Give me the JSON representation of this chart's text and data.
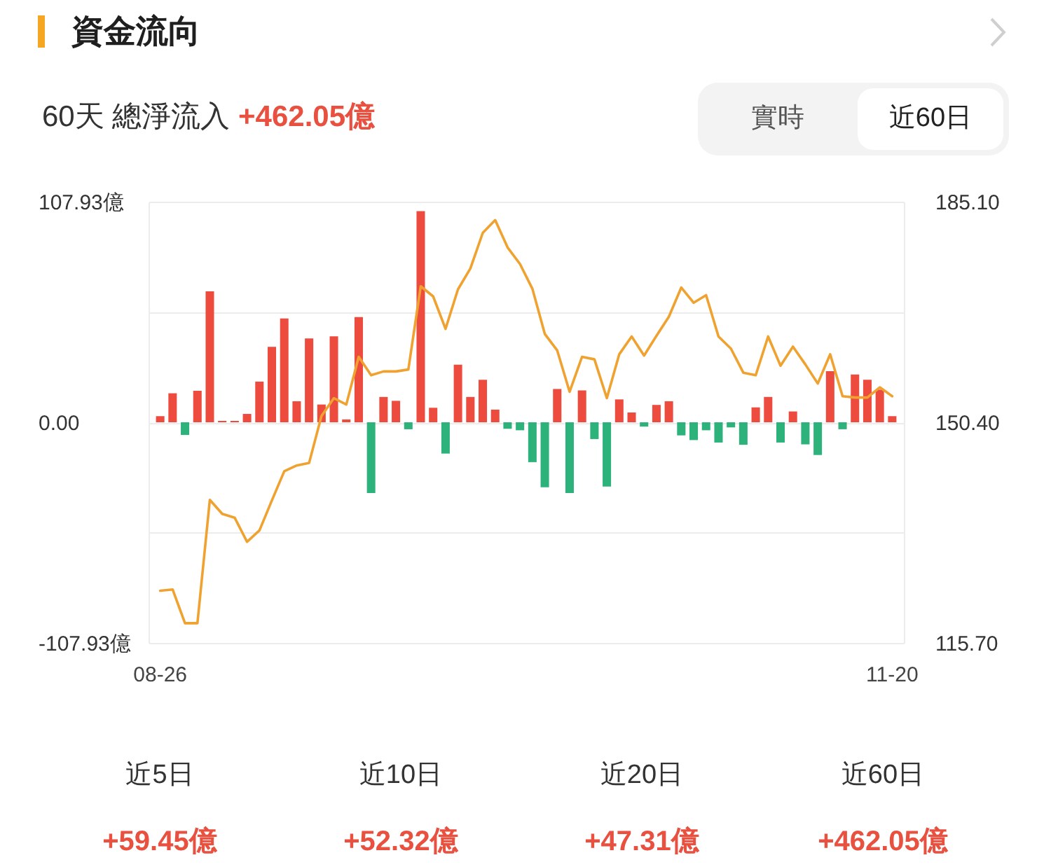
{
  "chart_data": {
    "type": "bar",
    "title": "資金流向",
    "subtitle": "60天 總淨流入 +462.05億",
    "categories": [
      "08-26",
      null,
      null,
      null,
      null,
      null,
      null,
      null,
      null,
      null,
      null,
      null,
      null,
      null,
      null,
      null,
      null,
      null,
      null,
      null,
      null,
      null,
      null,
      null,
      null,
      null,
      null,
      null,
      null,
      null,
      null,
      null,
      null,
      null,
      null,
      null,
      null,
      null,
      null,
      null,
      null,
      null,
      null,
      null,
      null,
      null,
      null,
      null,
      null,
      null,
      null,
      null,
      null,
      null,
      null,
      null,
      null,
      null,
      null,
      "11-20"
    ],
    "series": [
      {
        "values": [
          3.0,
          14.2,
          -6.2,
          15.4,
          64.1,
          0.7,
          0.7,
          4.1,
          19.9,
          36.9,
          50.8,
          10.3,
          41.0,
          8.7,
          42.1,
          1.4,
          51.5,
          -34.6,
          12.4,
          10.5,
          -3.4,
          103.3,
          7.1,
          -15.3,
          28.2,
          12.4,
          20.8,
          6.2,
          -3.2,
          -3.9,
          -19.5,
          -31.8,
          16.3,
          -34.6,
          15.6,
          -8.2,
          -31.4,
          11.2,
          4.8,
          -2.1,
          8.5,
          10.3,
          -6.4,
          -8.7,
          -3.9,
          -9.9,
          -2.5,
          -11.0,
          7.3,
          12.4,
          -9.9,
          5.3,
          -10.8,
          -16.0,
          25.0,
          -3.4,
          23.4,
          20.8,
          16.0,
          3.0
        ],
        "colors": [
          "#ee4b3f",
          "#ee4b3f",
          "#2eb27c",
          "#ee4b3f",
          "#ee4b3f",
          "#ee4b3f",
          "#ee4b3f",
          "#ee4b3f",
          "#ee4b3f",
          "#ee4b3f",
          "#ee4b3f",
          "#ee4b3f",
          "#ee4b3f",
          "#ee4b3f",
          "#ee4b3f",
          "#ee4b3f",
          "#ee4b3f",
          "#2eb27c",
          "#ee4b3f",
          "#ee4b3f",
          "#2eb27c",
          "#ee4b3f",
          "#ee4b3f",
          "#2eb27c",
          "#ee4b3f",
          "#ee4b3f",
          "#ee4b3f",
          "#ee4b3f",
          "#2eb27c",
          "#2eb27c",
          "#2eb27c",
          "#2eb27c",
          "#ee4b3f",
          "#2eb27c",
          "#ee4b3f",
          "#2eb27c",
          "#2eb27c",
          "#ee4b3f",
          "#ee4b3f",
          "#2eb27c",
          "#ee4b3f",
          "#ee4b3f",
          "#2eb27c",
          "#2eb27c",
          "#2eb27c",
          "#2eb27c",
          "#2eb27c",
          "#2eb27c",
          "#ee4b3f",
          "#ee4b3f",
          "#2eb27c",
          "#ee4b3f",
          "#2eb27c",
          "#2eb27c",
          "#ee4b3f",
          "#2eb27c",
          "#ee4b3f",
          "#ee4b3f",
          "#ee4b3f",
          "#ee4b3f"
        ]
      },
      {
        "type": "line",
        "axis": "y2",
        "color": "#efa22f",
        "values": [
          123.9,
          124.1,
          118.8,
          118.8,
          138.2,
          136.0,
          135.4,
          131.6,
          133.4,
          138.1,
          142.7,
          143.6,
          144.0,
          151.4,
          154.2,
          153.2,
          160.7,
          157.8,
          158.4,
          158.4,
          158.7,
          171.8,
          170.2,
          165.1,
          171.3,
          174.6,
          180.2,
          182.2,
          177.9,
          175.3,
          171.4,
          164.3,
          161.7,
          155.2,
          160.7,
          160.3,
          154.2,
          161.1,
          163.9,
          160.9,
          164.0,
          167.0,
          171.6,
          169.2,
          170.4,
          163.9,
          162.0,
          158.2,
          157.8,
          163.9,
          159.3,
          162.3,
          159.5,
          156.5,
          161.1,
          154.5,
          154.3,
          154.3,
          155.9,
          154.5
        ]
      }
    ],
    "ylim": [
      -107.93,
      107.93
    ],
    "yticks": [
      {
        "value": 107.93,
        "label": "107.93億"
      },
      {
        "value": 53.965,
        "label": null
      },
      {
        "value": 0,
        "label": "0.00"
      },
      {
        "value": -53.965,
        "label": null
      },
      {
        "value": -107.93,
        "label": "-107.93億"
      }
    ],
    "y2lim": [
      115.7,
      185.1
    ],
    "y2ticks": [
      {
        "value": 185.1,
        "label": "185.10"
      },
      {
        "value": 167.75,
        "label": null
      },
      {
        "value": 150.4,
        "label": "150.40"
      },
      {
        "value": 133.05,
        "label": null
      },
      {
        "value": 115.7,
        "label": "115.70"
      }
    ],
    "grid": "y",
    "annotations": [
      "實時",
      "近60日",
      "近5日",
      "+59.45億",
      "近10日",
      "+52.32億",
      "近20日",
      "+47.31億",
      "近60日",
      "+462.05億"
    ]
  }
}
